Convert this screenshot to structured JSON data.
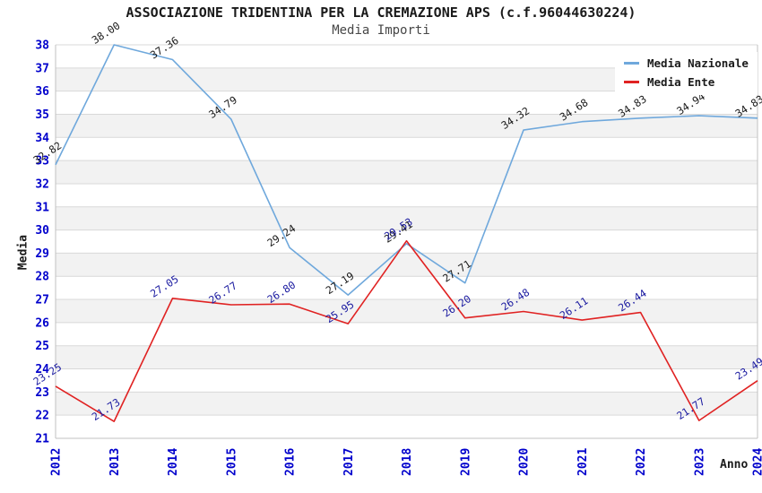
{
  "header": {
    "title": "ASSOCIAZIONE TRIDENTINA PER LA CREMAZIONE APS (c.f.96044630224)",
    "subtitle": "Media Importi"
  },
  "axes": {
    "y_label": "Media",
    "x_label": "Anno",
    "y_ticks": [
      21,
      22,
      23,
      24,
      25,
      26,
      27,
      28,
      29,
      30,
      31,
      32,
      33,
      34,
      35,
      36,
      37,
      38
    ],
    "x_ticks": [
      "2012",
      "2013",
      "2014",
      "2015",
      "2016",
      "2017",
      "2018",
      "2019",
      "2020",
      "2021",
      "2022",
      "2023",
      "2024"
    ]
  },
  "legend": {
    "items": [
      {
        "label": "Media Nazionale",
        "color": "#6fa8dc"
      },
      {
        "label": "Media Ente",
        "color": "#e02222"
      }
    ]
  },
  "colors": {
    "tick_text": "#0000cc",
    "grid_line": "#d9d9d9",
    "band_even": "#ffffff",
    "band_odd": "#f2f2f2",
    "plot_border": "#c0c0c0",
    "title_text": "#1a1a1a",
    "subtitle_text": "#474747"
  },
  "chart_data": {
    "type": "line",
    "title": "ASSOCIAZIONE TRIDENTINA PER LA CREMAZIONE APS (c.f.96044630224)",
    "subtitle": "Media Importi",
    "xlabel": "Anno",
    "ylabel": "Media",
    "x": [
      2012,
      2013,
      2014,
      2015,
      2016,
      2017,
      2018,
      2019,
      2020,
      2021,
      2022,
      2023,
      2024
    ],
    "ylim": [
      21,
      38
    ],
    "grid": true,
    "legend_position": "top-right",
    "series": [
      {
        "name": "Media Nazionale",
        "color": "#6fa8dc",
        "label_color": "#1a1a1a",
        "values": [
          32.82,
          38.0,
          37.36,
          34.79,
          29.24,
          27.19,
          29.41,
          27.71,
          34.32,
          34.68,
          34.83,
          34.94,
          34.83
        ]
      },
      {
        "name": "Media Ente",
        "color": "#e02222",
        "label_color": "#1a1aa0",
        "values": [
          23.25,
          21.73,
          27.05,
          26.77,
          26.8,
          25.95,
          29.53,
          26.2,
          26.48,
          26.11,
          26.44,
          21.77,
          23.49
        ]
      }
    ]
  }
}
